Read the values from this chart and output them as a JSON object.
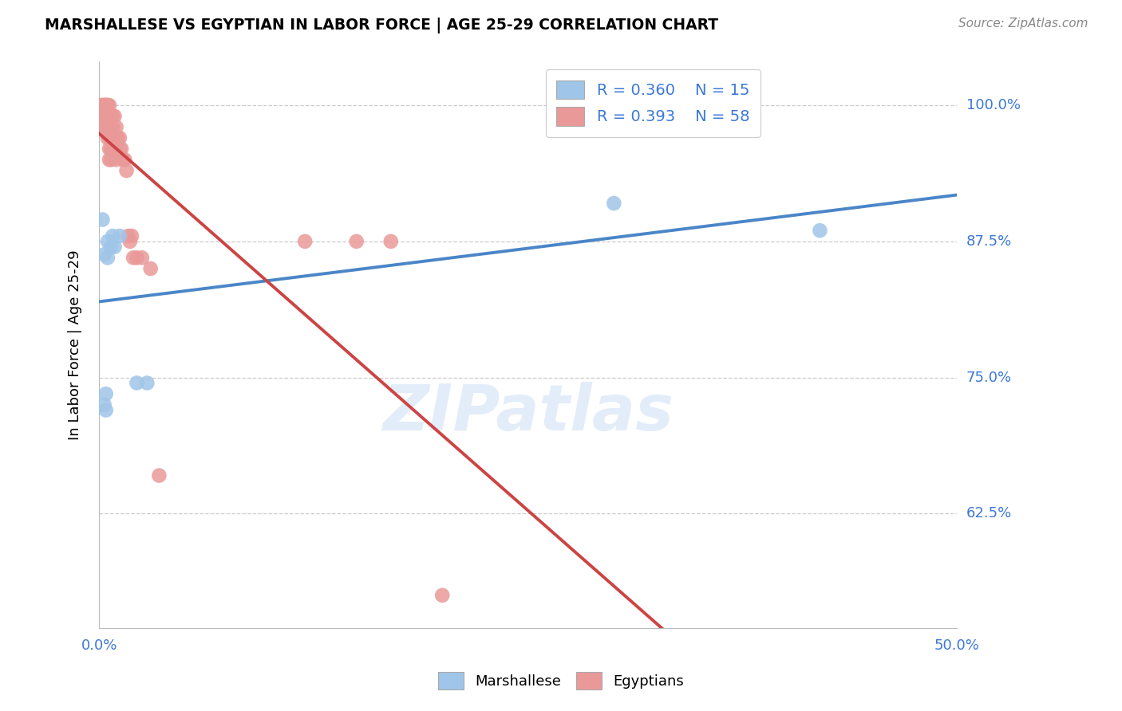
{
  "title": "MARSHALLESE VS EGYPTIAN IN LABOR FORCE | AGE 25-29 CORRELATION CHART",
  "source": "Source: ZipAtlas.com",
  "ylabel": "In Labor Force | Age 25-29",
  "xlim": [
    0.0,
    0.5
  ],
  "ylim": [
    0.52,
    1.04
  ],
  "blue_R": 0.36,
  "blue_N": 15,
  "pink_R": 0.393,
  "pink_N": 58,
  "blue_color": "#9fc5e8",
  "pink_color": "#ea9999",
  "trendline_blue": "#4a86c8",
  "trendline_pink": "#cc4444",
  "legend_blue_label": "Marshallese",
  "legend_pink_label": "Egyptians",
  "blue_x": [
    0.002,
    0.003,
    0.003,
    0.004,
    0.004,
    0.005,
    0.005,
    0.007,
    0.008,
    0.009,
    0.012,
    0.022,
    0.028,
    0.3,
    0.42
  ],
  "blue_y": [
    0.895,
    0.863,
    0.725,
    0.735,
    0.72,
    0.875,
    0.86,
    0.87,
    0.88,
    0.87,
    0.88,
    0.745,
    0.745,
    0.91,
    0.885
  ],
  "pink_x": [
    0.001,
    0.002,
    0.002,
    0.002,
    0.003,
    0.003,
    0.003,
    0.003,
    0.003,
    0.004,
    0.004,
    0.004,
    0.004,
    0.004,
    0.005,
    0.005,
    0.005,
    0.005,
    0.005,
    0.006,
    0.006,
    0.006,
    0.006,
    0.006,
    0.006,
    0.007,
    0.007,
    0.007,
    0.007,
    0.007,
    0.008,
    0.008,
    0.008,
    0.009,
    0.009,
    0.009,
    0.01,
    0.01,
    0.01,
    0.011,
    0.012,
    0.012,
    0.013,
    0.014,
    0.015,
    0.016,
    0.017,
    0.018,
    0.019,
    0.02,
    0.022,
    0.025,
    0.03,
    0.035,
    0.12,
    0.15,
    0.17,
    0.2
  ],
  "pink_y": [
    1.0,
    1.0,
    1.0,
    0.99,
    1.0,
    1.0,
    1.0,
    0.99,
    0.98,
    1.0,
    1.0,
    1.0,
    0.99,
    0.98,
    1.0,
    1.0,
    0.99,
    0.98,
    0.97,
    1.0,
    0.99,
    0.98,
    0.97,
    0.96,
    0.95,
    0.99,
    0.98,
    0.97,
    0.96,
    0.95,
    0.99,
    0.98,
    0.96,
    0.99,
    0.97,
    0.96,
    0.98,
    0.97,
    0.95,
    0.97,
    0.97,
    0.96,
    0.96,
    0.95,
    0.95,
    0.94,
    0.88,
    0.875,
    0.88,
    0.86,
    0.86,
    0.86,
    0.85,
    0.66,
    0.875,
    0.875,
    0.875,
    0.55
  ],
  "background_color": "#ffffff",
  "grid_color": "#cccccc",
  "ytick_vals": [
    0.625,
    0.75,
    0.875,
    1.0
  ],
  "ytick_labels": [
    "62.5%",
    "75.0%",
    "87.5%",
    "100.0%"
  ]
}
